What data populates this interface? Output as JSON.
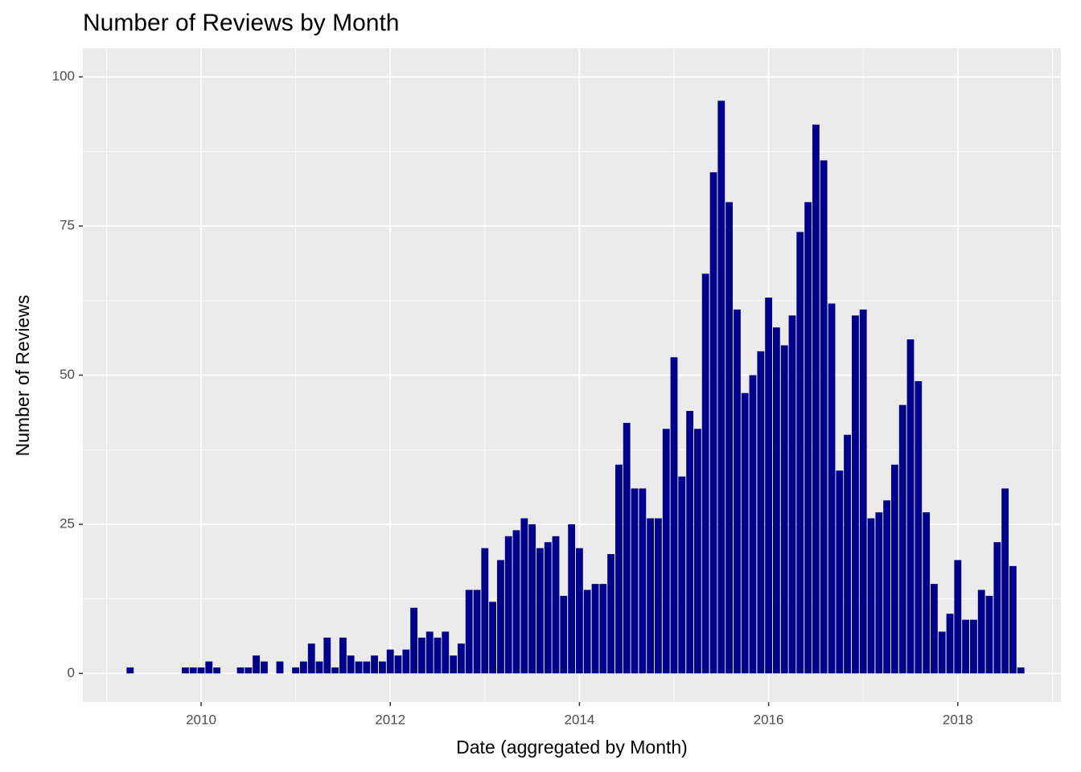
{
  "chart_data": {
    "type": "bar",
    "title": "Number of Reviews by Month",
    "x_label": "Date (aggregated by Month)",
    "y_label": "Number of Reviews",
    "color": "#00008b",
    "grid": true,
    "x": [
      2009.25,
      2009.833,
      2009.917,
      2010,
      2010.083,
      2010.167,
      2010.417,
      2010.5,
      2010.583,
      2010.667,
      2010.833,
      2011,
      2011.083,
      2011.167,
      2011.25,
      2011.333,
      2011.417,
      2011.5,
      2011.583,
      2011.667,
      2011.75,
      2011.833,
      2011.917,
      2012,
      2012.083,
      2012.167,
      2012.25,
      2012.333,
      2012.417,
      2012.5,
      2012.583,
      2012.667,
      2012.75,
      2012.833,
      2012.917,
      2013,
      2013.083,
      2013.167,
      2013.25,
      2013.333,
      2013.417,
      2013.5,
      2013.583,
      2013.667,
      2013.75,
      2013.833,
      2013.917,
      2014,
      2014.083,
      2014.167,
      2014.25,
      2014.333,
      2014.417,
      2014.5,
      2014.583,
      2014.667,
      2014.75,
      2014.833,
      2014.917,
      2015,
      2015.083,
      2015.167,
      2015.25,
      2015.333,
      2015.417,
      2015.5,
      2015.583,
      2015.667,
      2015.75,
      2015.833,
      2015.917,
      2016,
      2016.083,
      2016.167,
      2016.25,
      2016.333,
      2016.417,
      2016.5,
      2016.583,
      2016.667,
      2016.75,
      2016.833,
      2016.917,
      2017,
      2017.083,
      2017.167,
      2017.25,
      2017.333,
      2017.417,
      2017.5,
      2017.583,
      2017.667,
      2017.75,
      2017.833,
      2017.917,
      2018,
      2018.083,
      2018.167,
      2018.25,
      2018.333,
      2018.417,
      2018.5,
      2018.583,
      2018.667
    ],
    "values": [
      1,
      1,
      1,
      1,
      2,
      1,
      1,
      1,
      3,
      2,
      2,
      1,
      2,
      5,
      2,
      6,
      1,
      6,
      3,
      2,
      2,
      3,
      2,
      4,
      3,
      4,
      11,
      6,
      7,
      6,
      7,
      3,
      5,
      14,
      14,
      21,
      12,
      19,
      23,
      24,
      26,
      25,
      21,
      22,
      23,
      13,
      25,
      21,
      14,
      15,
      15,
      20,
      35,
      42,
      31,
      31,
      26,
      26,
      41,
      53,
      33,
      44,
      41,
      67,
      84,
      96,
      79,
      61,
      47,
      50,
      54,
      63,
      58,
      55,
      60,
      74,
      79,
      92,
      86,
      62,
      34,
      40,
      60,
      61,
      26,
      27,
      29,
      35,
      45,
      56,
      49,
      27,
      15,
      7,
      10,
      19,
      9,
      9,
      14,
      13,
      22,
      31,
      18,
      1
    ],
    "xlim": [
      2008.75,
      2019.09
    ],
    "xticks": [
      2010,
      2012,
      2014,
      2016,
      2018
    ],
    "ylim": [
      -4.8,
      104.8
    ],
    "yticks": [
      0,
      25,
      50,
      75,
      100
    ]
  }
}
